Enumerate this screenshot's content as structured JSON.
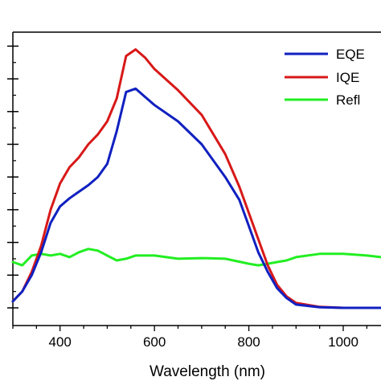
{
  "chart_data": {
    "type": "line",
    "xlabel": "Wavelength (nm)",
    "ylabel": "",
    "xlim": [
      300,
      1080
    ],
    "ylim": [
      0,
      100
    ],
    "x_major_ticks": [
      400,
      600,
      800,
      1000
    ],
    "x_tick_labels": [
      "400",
      "600",
      "800",
      "1000"
    ],
    "y_major_ticks": [
      0,
      10,
      20,
      30,
      40,
      50,
      60,
      70,
      80
    ],
    "grid": false,
    "legend_position": "top-right",
    "series": [
      {
        "name": "EQE",
        "color": "#1020c0",
        "points": [
          [
            300,
            2
          ],
          [
            320,
            5
          ],
          [
            340,
            10
          ],
          [
            360,
            17
          ],
          [
            380,
            26
          ],
          [
            400,
            31
          ],
          [
            420,
            33.5
          ],
          [
            440,
            35.5
          ],
          [
            460,
            37.5
          ],
          [
            480,
            40
          ],
          [
            500,
            44
          ],
          [
            520,
            54
          ],
          [
            540,
            66
          ],
          [
            560,
            67
          ],
          [
            580,
            64.5
          ],
          [
            600,
            62
          ],
          [
            650,
            57
          ],
          [
            700,
            50
          ],
          [
            750,
            40
          ],
          [
            780,
            33
          ],
          [
            800,
            25
          ],
          [
            820,
            17
          ],
          [
            840,
            11
          ],
          [
            860,
            6
          ],
          [
            880,
            3
          ],
          [
            900,
            1
          ],
          [
            950,
            0.2
          ],
          [
            1000,
            0
          ],
          [
            1080,
            0
          ]
        ]
      },
      {
        "name": "IQE",
        "color": "#d81818",
        "points": [
          [
            300,
            2
          ],
          [
            320,
            5
          ],
          [
            340,
            11
          ],
          [
            360,
            19
          ],
          [
            380,
            30
          ],
          [
            400,
            38
          ],
          [
            420,
            43
          ],
          [
            440,
            46
          ],
          [
            460,
            50
          ],
          [
            480,
            53
          ],
          [
            500,
            57
          ],
          [
            520,
            64
          ],
          [
            540,
            77
          ],
          [
            560,
            79
          ],
          [
            580,
            76.5
          ],
          [
            600,
            73
          ],
          [
            650,
            66.5
          ],
          [
            700,
            59
          ],
          [
            750,
            47
          ],
          [
            780,
            37
          ],
          [
            800,
            29
          ],
          [
            820,
            21
          ],
          [
            840,
            13
          ],
          [
            860,
            7
          ],
          [
            880,
            3.5
          ],
          [
            900,
            1.5
          ],
          [
            950,
            0.3
          ],
          [
            1000,
            0
          ],
          [
            1080,
            0
          ]
        ]
      },
      {
        "name": "Refl",
        "color": "#22ee22",
        "points": [
          [
            300,
            14
          ],
          [
            320,
            13
          ],
          [
            340,
            16
          ],
          [
            360,
            16.5
          ],
          [
            380,
            16
          ],
          [
            400,
            16.5
          ],
          [
            420,
            15.5
          ],
          [
            440,
            17
          ],
          [
            460,
            18
          ],
          [
            480,
            17.5
          ],
          [
            500,
            16
          ],
          [
            520,
            14.5
          ],
          [
            540,
            15
          ],
          [
            560,
            16
          ],
          [
            600,
            16
          ],
          [
            650,
            15
          ],
          [
            700,
            15.2
          ],
          [
            750,
            15
          ],
          [
            800,
            13.5
          ],
          [
            820,
            13
          ],
          [
            840,
            13.5
          ],
          [
            860,
            14
          ],
          [
            880,
            14.5
          ],
          [
            900,
            15.5
          ],
          [
            950,
            16.5
          ],
          [
            1000,
            16.5
          ],
          [
            1050,
            16
          ],
          [
            1080,
            15.5
          ]
        ]
      }
    ]
  }
}
